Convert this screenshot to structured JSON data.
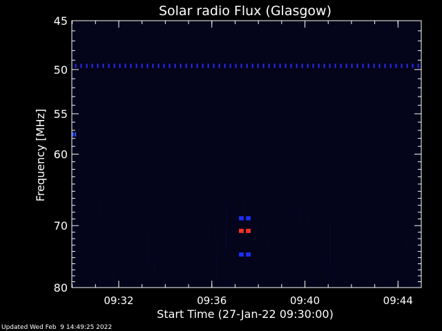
{
  "chart_data": {
    "type": "heatmap",
    "title": "Solar radio Flux (Glasgow)",
    "xlabel": "Start Time (27-Jan-22 09:30:00)",
    "ylabel": "Frequency [MHz]",
    "x_unit": "time",
    "xlim": [
      "09:29:59",
      "09:45:00"
    ],
    "x_ticks": [
      "09:32",
      "09:36",
      "09:40",
      "09:44"
    ],
    "ylim": [
      45,
      80
    ],
    "y_scale": "log",
    "y_ticks": [
      45,
      50,
      55,
      60,
      70,
      80
    ],
    "colormap": [
      "#000000",
      "#04041a",
      "#0a0a3a",
      "#1010a0",
      "#2030ff",
      "#ff3020"
    ],
    "background_color": "#04041a",
    "features": [
      {
        "name": "interference-band",
        "frequency_mhz": 49.6,
        "time_start": "09:30:00",
        "time_end": "09:45:00",
        "color": "#2a2aff"
      },
      {
        "name": "burst-upper",
        "frequency_mhz": 68.9,
        "time_start": "09:37:10",
        "time_end": "09:37:40",
        "color": "#1a30ff"
      },
      {
        "name": "burst-core",
        "frequency_mhz": 70.8,
        "time_start": "09:37:10",
        "time_end": "09:37:40",
        "color": "#ff3020"
      },
      {
        "name": "burst-lower",
        "frequency_mhz": 74.5,
        "time_start": "09:37:10",
        "time_end": "09:37:40",
        "color": "#1a30ff"
      },
      {
        "name": "edge-signal",
        "frequency_mhz": 57.5,
        "time_start": "09:30:00",
        "time_end": "09:30:10",
        "color": "#3050ff"
      }
    ]
  },
  "footer": {
    "updated_text": "Updated Wed Feb  9 14:49:25 2022"
  }
}
